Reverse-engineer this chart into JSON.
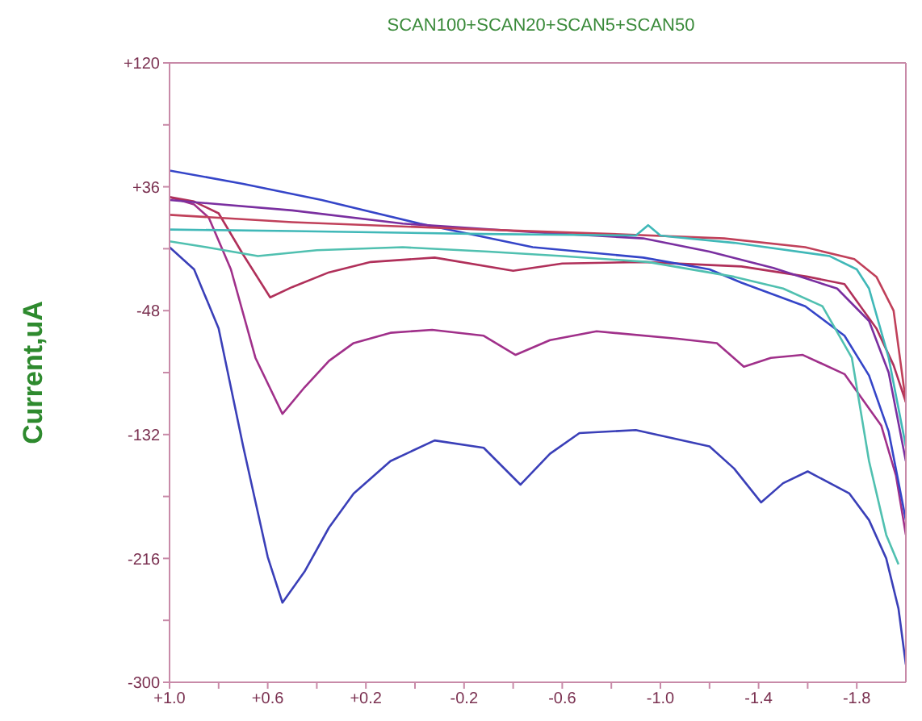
{
  "chart_data": {
    "type": "line",
    "title": "SCAN100+SCAN20+SCAN5+SCAN50",
    "ylabel": "Current,uA",
    "xlim": [
      1.0,
      -2.0
    ],
    "xticks": [
      {
        "value": 1.0,
        "label": "+1.0"
      },
      {
        "value": 0.8,
        "label": null
      },
      {
        "value": 0.6,
        "label": "+0.6"
      },
      {
        "value": 0.4,
        "label": null
      },
      {
        "value": 0.2,
        "label": "+0.2"
      },
      {
        "value": 0,
        "label": null
      },
      {
        "value": -0.2,
        "label": "-0.2"
      },
      {
        "value": -0.4,
        "label": null
      },
      {
        "value": -0.6,
        "label": "-0.6"
      },
      {
        "value": -0.8,
        "label": null
      },
      {
        "value": -1.0,
        "label": "-1.0"
      },
      {
        "value": -1.2,
        "label": null
      },
      {
        "value": -1.4,
        "label": "-1.4"
      },
      {
        "value": -1.6,
        "label": null
      },
      {
        "value": -1.8,
        "label": "-1.8"
      }
    ],
    "ylim": [
      -300,
      120
    ],
    "yticks": [
      {
        "value": 120,
        "label": "+120"
      },
      {
        "value": 78,
        "label": null
      },
      {
        "value": 36,
        "label": "+36"
      },
      {
        "value": -6,
        "label": null
      },
      -48,
      {
        "value": -90,
        "label": null
      },
      -132,
      {
        "value": -174,
        "label": null
      },
      -216,
      {
        "value": -258,
        "label": null
      },
      -300
    ],
    "marker": "none",
    "line_style": "solid",
    "series": [
      {
        "color": "#3a3fb8",
        "x": [
          1.0,
          0.9,
          0.8,
          0.7,
          0.6,
          0.54,
          0.45,
          0.35,
          0.25,
          0.1,
          -0.08,
          -0.28,
          -0.43,
          -0.55,
          -0.67,
          -0.9,
          -1.2,
          -1.3,
          -1.41,
          -1.5,
          -1.6,
          -1.77,
          -1.85,
          -1.92,
          -1.97,
          -2.0
        ],
        "values": [
          -5,
          -20,
          -60,
          -140,
          -215,
          -246,
          -225,
          -195,
          -172,
          -150,
          -136,
          -141,
          -166,
          -145,
          -131,
          -129,
          -140,
          -155,
          -178,
          -165,
          -157,
          -172,
          -190,
          -216,
          -250,
          -288
        ]
      },
      {
        "color": "#a0308a",
        "x": [
          1.0,
          0.9,
          0.84,
          0.75,
          0.65,
          0.54,
          0.45,
          0.35,
          0.25,
          0.1,
          -0.07,
          -0.28,
          -0.41,
          -0.55,
          -0.74,
          -1.07,
          -1.23,
          -1.34,
          -1.45,
          -1.58,
          -1.75,
          -1.9,
          -1.96,
          -2.0
        ],
        "values": [
          29,
          24,
          15,
          -20,
          -80,
          -118,
          -100,
          -82,
          -70,
          -63,
          -61,
          -65,
          -78,
          -68,
          -62,
          -67,
          -70,
          -86,
          -80,
          -78,
          -91,
          -126,
          -160,
          -200
        ]
      },
      {
        "color": "#b0305a",
        "x": [
          1.0,
          0.9,
          0.8,
          0.7,
          0.59,
          0.5,
          0.35,
          0.18,
          -0.08,
          -0.4,
          -0.6,
          -0.93,
          -1.33,
          -1.6,
          -1.75,
          -1.88,
          -1.95,
          -2.0
        ],
        "values": [
          29,
          26,
          18,
          -10,
          -39,
          -32,
          -22,
          -15,
          -12,
          -21,
          -16,
          -15,
          -18,
          -25,
          -30,
          -60,
          -85,
          -110
        ]
      },
      {
        "color": "#3545c8",
        "x": [
          1.0,
          0.7,
          0.38,
          -0.02,
          -0.48,
          -0.93,
          -1.2,
          -1.33,
          -1.59,
          -1.75,
          -1.85,
          -1.93,
          -2.0
        ],
        "values": [
          47,
          38,
          27,
          11,
          -5,
          -12,
          -20,
          -29,
          -45,
          -65,
          -92,
          -130,
          -190
        ]
      },
      {
        "color": "#7a2fa0",
        "x": [
          1.0,
          0.5,
          0.05,
          -0.5,
          -0.93,
          -1.2,
          -1.46,
          -1.72,
          -1.85,
          -1.93,
          -2.0
        ],
        "values": [
          27,
          20,
          11,
          5,
          1,
          -8,
          -19,
          -33,
          -55,
          -90,
          -150
        ]
      },
      {
        "color": "#c0405a",
        "x": [
          1.0,
          0.5,
          -0.28,
          -0.8,
          -1.26,
          -1.59,
          -1.79,
          -1.88,
          -1.95,
          -2.0
        ],
        "values": [
          17,
          12,
          7,
          4,
          1,
          -5,
          -13,
          -25,
          -48,
          -110
        ]
      },
      {
        "color": "#40b8b8",
        "x": [
          1.0,
          0.5,
          -0.28,
          -0.9,
          -0.95,
          -1.0,
          -1.05,
          -1.3,
          -1.69,
          -1.8,
          -1.85,
          -1.93,
          -2.0
        ],
        "values": [
          7,
          6,
          4,
          3,
          10,
          3,
          2,
          -2,
          -11,
          -20,
          -33,
          -80,
          -140
        ]
      },
      {
        "color": "#50c0b0",
        "x": [
          1.0,
          0.85,
          0.64,
          0.4,
          0.05,
          -0.3,
          -0.6,
          -0.95,
          -1.3,
          -1.5,
          -1.66,
          -1.78,
          -1.85,
          -1.92,
          -1.97
        ],
        "values": [
          -1,
          -5,
          -11,
          -7,
          -5,
          -8,
          -11,
          -15,
          -25,
          -33,
          -45,
          -80,
          -150,
          -200,
          -220
        ]
      }
    ]
  }
}
